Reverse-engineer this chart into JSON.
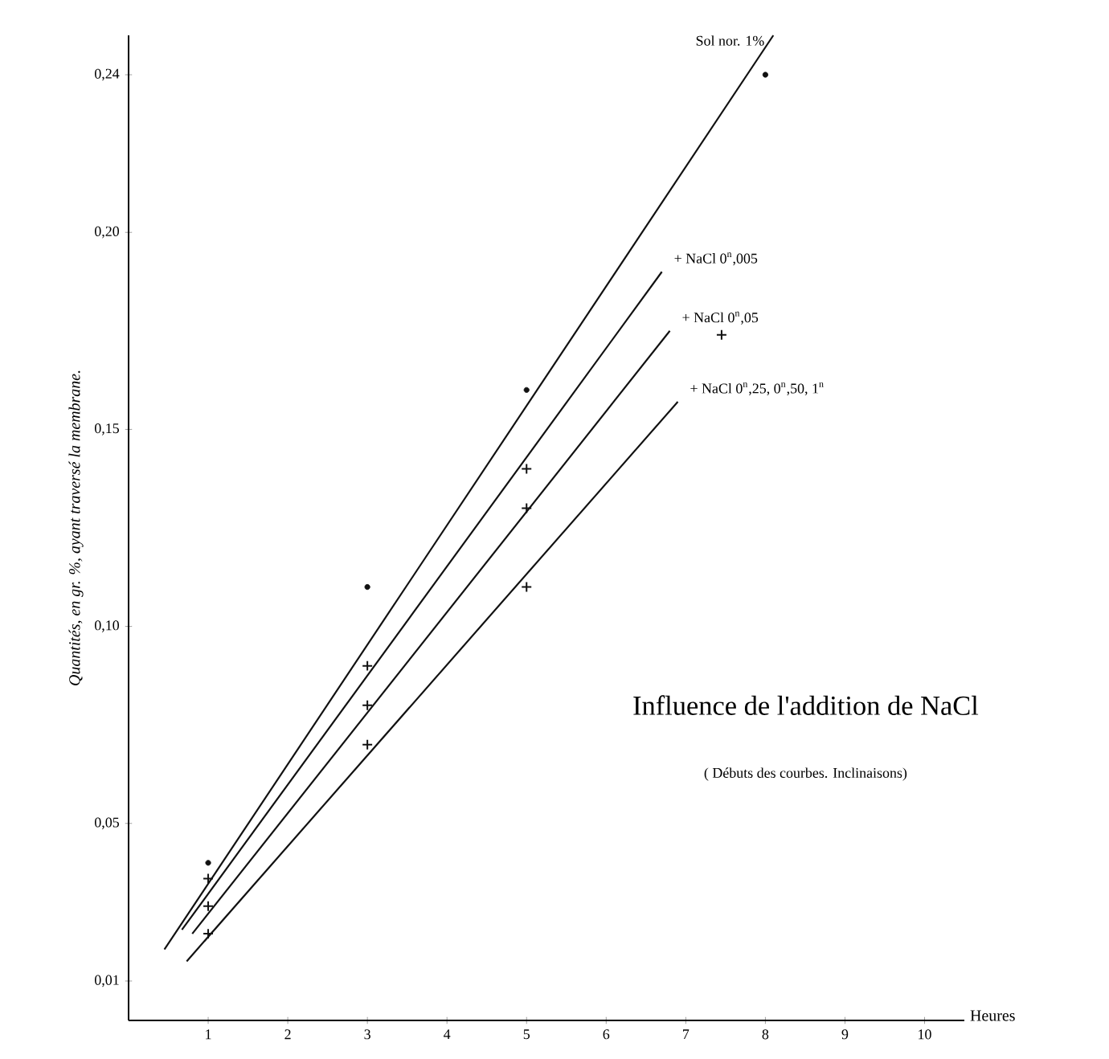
{
  "chart_data": {
    "type": "line",
    "title": "Influence de l'addition de NaCl",
    "subtitle": "( Débuts des courbes. Inclinaisons)",
    "xlabel": "Heures",
    "ylabel": "Quantités, en gr. %, ayant traversé la membrane.",
    "xlim": [
      0,
      10.5
    ],
    "ylim": [
      0,
      0.25
    ],
    "xticks": [
      1,
      2,
      3,
      4,
      5,
      6,
      7,
      8,
      9,
      10
    ],
    "yticks": [
      {
        "value": 0.01,
        "label": "0,01"
      },
      {
        "value": 0.05,
        "label": "0,05"
      },
      {
        "value": 0.1,
        "label": "0,10"
      },
      {
        "value": 0.15,
        "label": "0,15"
      },
      {
        "value": 0.2,
        "label": "0,20"
      },
      {
        "value": 0.24,
        "label": "0,24"
      }
    ],
    "series": [
      {
        "name": "Sol nor. 1%",
        "color": "#111111",
        "marker": "none",
        "x": [
          0.45,
          8.1
        ],
        "values": [
          0.018,
          0.25
        ]
      },
      {
        "name": "+ NaCl 0$^{n}$,005",
        "color": "#111111",
        "marker": "none",
        "x": [
          0.67,
          6.7
        ],
        "values": [
          0.023,
          0.19
        ]
      },
      {
        "name": "+ NaCl 0$^{n}$,05",
        "color": "#111111",
        "marker": "none",
        "x": [
          0.8,
          6.8
        ],
        "values": [
          0.022,
          0.175
        ]
      },
      {
        "name": "+ NaCl 0$^{n}$,25, 0$^{n}$,50, 1$^{n}$",
        "color": "#111111",
        "marker": "none",
        "x": [
          0.73,
          6.9
        ],
        "values": [
          0.015,
          0.157
        ]
      },
      {
        "type": "scatter",
        "color": "#111111",
        "marker": "circle",
        "x": [
          1,
          3,
          5,
          8
        ],
        "values": [
          0.04,
          0.11,
          0.16,
          0.24
        ]
      },
      {
        "type": "scatter",
        "color": "#111111",
        "marker": "cross",
        "x": [
          1,
          3,
          5,
          7.45
        ],
        "values": [
          0.036,
          0.09,
          0.14,
          0.174
        ]
      },
      {
        "type": "scatter",
        "color": "#111111",
        "marker": "cross",
        "x": [
          1,
          3,
          5
        ],
        "values": [
          0.029,
          0.08,
          0.13
        ]
      },
      {
        "type": "scatter",
        "color": "#111111",
        "marker": "cross",
        "x": [
          1,
          3,
          5
        ],
        "values": [
          0.022,
          0.07,
          0.11
        ]
      }
    ]
  }
}
